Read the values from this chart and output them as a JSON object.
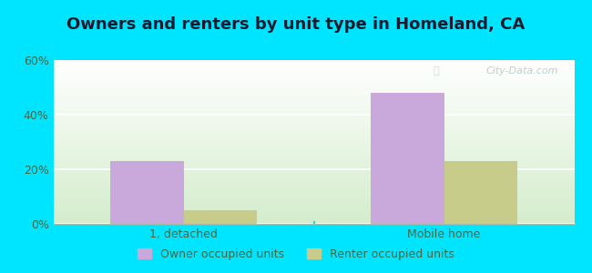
{
  "title": "Owners and renters by unit type in Homeland, CA",
  "categories": [
    "1, detached",
    "Mobile home"
  ],
  "owner_values": [
    23.0,
    48.0
  ],
  "renter_values": [
    5.0,
    23.0
  ],
  "owner_color": "#c9a8dc",
  "renter_color": "#c8cc8a",
  "ylim": [
    0,
    60
  ],
  "yticks": [
    0,
    20,
    40,
    60
  ],
  "ytick_labels": [
    "0%",
    "20%",
    "40%",
    "60%"
  ],
  "bar_width": 0.28,
  "background_outer": "#00e5ff",
  "legend_owner": "Owner occupied units",
  "legend_renter": "Renter occupied units",
  "watermark": "City-Data.com",
  "title_fontsize": 13,
  "axis_fontsize": 9,
  "legend_fontsize": 9,
  "grid_color": "#d0e8d0",
  "tick_color": "#446644"
}
